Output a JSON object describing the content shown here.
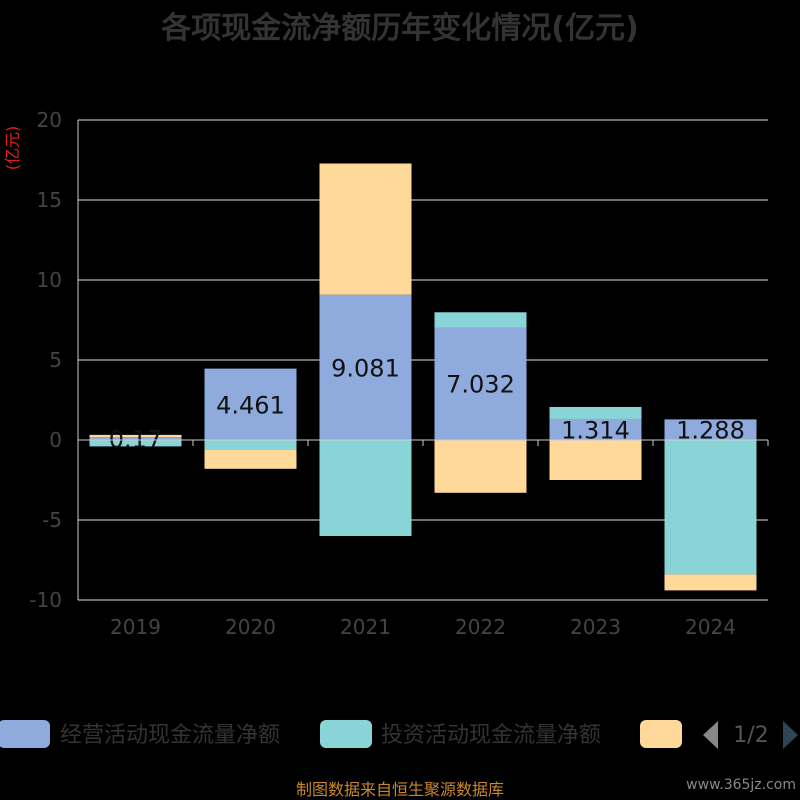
{
  "chart_data": {
    "type": "bar",
    "stacked": true,
    "title": "各项现金流净额历年变化情况(亿元)",
    "unit_label": "(亿元)",
    "categories": [
      "2019",
      "2020",
      "2021",
      "2022",
      "2023",
      "2024"
    ],
    "ylim": [
      -10,
      20
    ],
    "yticks": [
      20,
      15,
      10,
      5,
      0,
      -5,
      -10
    ],
    "grid": true,
    "series": [
      {
        "name": "经营活动现金流量净额",
        "color": "#8faadc",
        "values": [
          0.17,
          4.461,
          9.081,
          7.032,
          1.314,
          1.288
        ],
        "labels": [
          "0.17",
          "4.461",
          "9.081",
          "7.032",
          "1.314",
          "1.288"
        ]
      },
      {
        "name": "投资活动现金流量净额",
        "color": "#88d4d6",
        "values": [
          -0.4,
          -0.6,
          -6.0,
          0.95,
          0.75,
          -8.4
        ]
      },
      {
        "name": "",
        "color": "#ffd99a",
        "values": [
          0.15,
          -1.2,
          8.2,
          -3.3,
          -2.5,
          -1.0
        ]
      }
    ],
    "legend": {
      "placement": "bottom",
      "page": "1/2"
    }
  },
  "footer": {
    "source": "制图数据来自恒生聚源数据库",
    "watermark": "www.365jz.com"
  }
}
